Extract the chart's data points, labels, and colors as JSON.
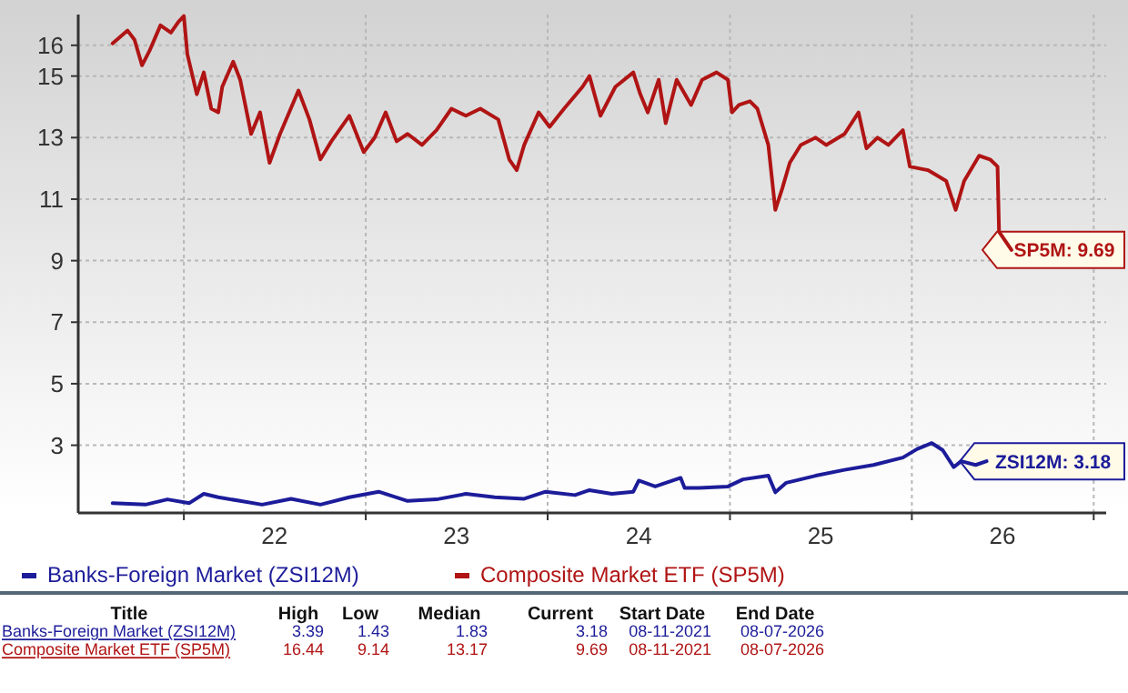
{
  "chart_data": {
    "type": "line",
    "xlim": [
      "2021-06-03",
      "2027-01-26"
    ],
    "ylim": [
      0.8,
      17
    ],
    "xticks": [
      {
        "value": "2022-01-01",
        "label": null
      },
      {
        "value": "2022-07-02",
        "label": "22"
      },
      {
        "value": "2023-01-01",
        "label": null
      },
      {
        "value": "2023-07-02",
        "label": "23"
      },
      {
        "value": "2024-01-01",
        "label": null
      },
      {
        "value": "2024-07-02",
        "label": "24"
      },
      {
        "value": "2025-01-01",
        "label": null
      },
      {
        "value": "2025-07-02",
        "label": "25"
      },
      {
        "value": "2026-01-01",
        "label": null
      },
      {
        "value": "2026-07-02",
        "label": "26"
      },
      {
        "value": "2027-01-01",
        "label": null
      }
    ],
    "yticks": [
      3,
      5,
      7,
      9,
      11,
      13,
      15,
      16
    ],
    "grid": true,
    "legend": "bottom",
    "line_style": "solid",
    "marker": "none",
    "series": [
      {
        "name": "Banks-Foreign Market (ZSI12M)",
        "color": "#1c1c9a",
        "x": [
          "2021-08-11",
          "2021-10-16",
          "2021-11-29",
          "2022-01-12",
          "2022-02-10",
          "2022-03-11",
          "2022-04-24",
          "2022-06-07",
          "2022-08-04",
          "2022-10-02",
          "2022-11-29",
          "2023-01-27",
          "2023-03-26",
          "2023-05-23",
          "2023-07-21",
          "2023-09-17",
          "2023-11-15",
          "2023-12-28",
          "2024-02-25",
          "2024-03-25",
          "2024-05-09",
          "2024-06-21",
          "2024-07-02",
          "2024-08-04",
          "2024-09-24",
          "2024-10-02",
          "2024-10-31",
          "2024-12-28",
          "2025-01-27",
          "2025-03-19",
          "2025-04-02",
          "2025-04-24",
          "2025-06-22",
          "2025-08-19",
          "2025-10-16",
          "2025-12-14",
          "2026-01-12",
          "2026-02-10",
          "2026-03-04",
          "2026-03-26",
          "2026-04-10",
          "2026-05-09",
          "2026-05-31"
        ],
        "values": [
          1.12,
          1.07,
          1.24,
          1.12,
          1.42,
          1.31,
          1.19,
          1.07,
          1.26,
          1.07,
          1.31,
          1.49,
          1.19,
          1.24,
          1.42,
          1.31,
          1.26,
          1.49,
          1.38,
          1.54,
          1.42,
          1.49,
          1.85,
          1.66,
          1.94,
          1.61,
          1.61,
          1.66,
          1.89,
          2.01,
          1.47,
          1.78,
          2.01,
          2.2,
          2.36,
          2.6,
          2.88,
          3.07,
          2.84,
          2.29,
          2.48,
          2.36,
          2.48
        ]
      },
      {
        "name": "Composite Market ETF (SP5M)",
        "color": "#b01414",
        "x": [
          "2021-08-11",
          "2021-09-10",
          "2021-09-24",
          "2021-10-09",
          "2021-10-24",
          "2021-11-15",
          "2021-12-06",
          "2021-12-21",
          "2022-01-01",
          "2022-01-08",
          "2022-01-27",
          "2022-02-10",
          "2022-02-25",
          "2022-03-11",
          "2022-03-19",
          "2022-04-10",
          "2022-04-24",
          "2022-05-16",
          "2022-06-03",
          "2022-06-22",
          "2022-07-13",
          "2022-08-19",
          "2022-09-10",
          "2022-10-02",
          "2022-10-24",
          "2022-11-29",
          "2022-12-28",
          "2023-01-19",
          "2023-02-10",
          "2023-03-04",
          "2023-03-26",
          "2023-04-24",
          "2023-05-23",
          "2023-06-22",
          "2023-07-21",
          "2023-08-19",
          "2023-09-24",
          "2023-10-16",
          "2023-10-31",
          "2023-11-15",
          "2023-12-14",
          "2024-01-05",
          "2024-02-03",
          "2024-03-11",
          "2024-03-25",
          "2024-04-16",
          "2024-05-16",
          "2024-06-21",
          "2024-07-05",
          "2024-07-20",
          "2024-08-11",
          "2024-08-25",
          "2024-09-16",
          "2024-10-15",
          "2024-11-06",
          "2024-12-05",
          "2024-12-28",
          "2025-01-05",
          "2025-01-19",
          "2025-02-10",
          "2025-02-25",
          "2025-03-19",
          "2025-04-02",
          "2025-04-16",
          "2025-05-01",
          "2025-05-23",
          "2025-06-22",
          "2025-07-13",
          "2025-08-19",
          "2025-09-16",
          "2025-10-02",
          "2025-10-24",
          "2025-11-15",
          "2025-12-14",
          "2025-12-28",
          "2026-02-03",
          "2026-03-11",
          "2026-03-30",
          "2026-04-16",
          "2026-05-16",
          "2026-06-07",
          "2026-06-22",
          "2026-06-25",
          "2026-07-20"
        ],
        "values": [
          16.06,
          16.48,
          16.18,
          15.35,
          15.82,
          16.65,
          16.41,
          16.76,
          16.95,
          15.71,
          14.41,
          15.12,
          13.94,
          13.82,
          14.65,
          15.47,
          14.88,
          13.12,
          13.82,
          12.18,
          13.12,
          14.53,
          13.59,
          12.29,
          12.88,
          13.71,
          12.53,
          13,
          13.82,
          12.88,
          13.12,
          12.76,
          13.24,
          13.94,
          13.71,
          13.94,
          13.59,
          12.29,
          11.94,
          12.76,
          13.82,
          13.35,
          13.94,
          14.65,
          15,
          13.71,
          14.65,
          15.12,
          14.41,
          13.82,
          14.88,
          13.47,
          14.88,
          14.06,
          14.88,
          15.12,
          14.88,
          13.82,
          14.06,
          14.18,
          13.94,
          12.76,
          10.65,
          11.35,
          12.18,
          12.76,
          13,
          12.76,
          13.12,
          13.82,
          12.65,
          13,
          12.76,
          13.24,
          12.06,
          11.94,
          11.59,
          10.65,
          11.59,
          12.41,
          12.29,
          12.06,
          9.94,
          9.35
        ]
      }
    ],
    "annotations": [
      {
        "text": "SP5M: 9.69",
        "x": "2026-07-20",
        "y": 9.35
      },
      {
        "text": "ZSI12M: 3.18",
        "x": "2026-05-31",
        "y": 2.48
      },
      "Title",
      "High",
      "Low",
      "Median",
      "Current",
      "Start Date",
      "End Date",
      "Banks-Foreign Market (ZSI12M)",
      "3.39",
      "1.43",
      "1.83",
      "3.18",
      "08-11-2021",
      "08-07-2026",
      "Composite Market ETF (SP5M)",
      "16.44",
      "9.14",
      "13.17",
      "9.69",
      "08-11-2021",
      "08-07-2026"
    ]
  }
}
